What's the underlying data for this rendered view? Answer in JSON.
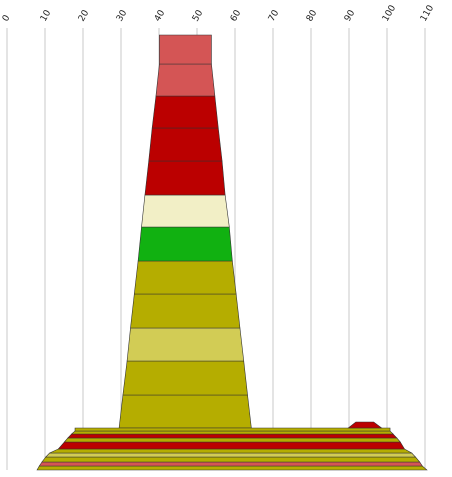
{
  "chart_data": {
    "type": "area",
    "title": "",
    "xlabel": "",
    "ylabel": "",
    "xlim": [
      0,
      110
    ],
    "x_ticks": [
      0,
      10,
      20,
      30,
      40,
      50,
      60,
      70,
      80,
      90,
      100,
      110
    ],
    "grid": true,
    "legend": "none",
    "stacks": [
      {
        "name": "",
        "layers": [
          {
            "left": 29.5,
            "right": 64.3,
            "color": "#b5ad00"
          },
          {
            "left": 30.5,
            "right": 63.3,
            "color": "#b5ad00"
          },
          {
            "left": 31.6,
            "right": 62.3,
            "color": "#d2cc55"
          },
          {
            "left": 32.5,
            "right": 61.3,
            "color": "#b5ad00"
          },
          {
            "left": 33.5,
            "right": 60.3,
            "color": "#b5ad00"
          },
          {
            "left": 34.5,
            "right": 59.3,
            "color": "#11b111"
          },
          {
            "left": 35.4,
            "right": 58.5,
            "color": "#f2efc6"
          },
          {
            "left": 36.3,
            "right": 57.4,
            "color": "#bb0000"
          },
          {
            "left": 37.3,
            "right": 56.6,
            "color": "#bb0000"
          },
          {
            "left": 38.2,
            "right": 55.6,
            "color": "#bb0000"
          },
          {
            "left": 39.2,
            "right": 54.7,
            "color": "#d45555"
          },
          {
            "left": 40.1,
            "right": 53.8,
            "color": "#d45555"
          }
        ]
      },
      {
        "name": "",
        "layers": [
          {
            "left": 7.9,
            "right": 110.5,
            "color": "#b5ad00"
          },
          {
            "left": 8.5,
            "right": 109.3,
            "color": "#d45555"
          },
          {
            "left": 9.2,
            "right": 108.6,
            "color": "#b5ad00"
          },
          {
            "left": 10.2,
            "right": 107.5,
            "color": "#d2cc55"
          },
          {
            "left": 11.2,
            "right": 106.5,
            "color": "#b5ad00"
          },
          {
            "left": 13.5,
            "right": 104.6,
            "color": "#bb0000"
          },
          {
            "left": 15.1,
            "right": 103.5,
            "color": "#b5ad00"
          },
          {
            "left": 16.0,
            "right": 102.6,
            "color": "#bb0000"
          },
          {
            "left": 17.0,
            "right": 101.6,
            "color": "#b5ad00"
          },
          {
            "left": 17.9,
            "right": 100.8,
            "color": "#b5ad00"
          }
        ]
      }
    ],
    "cap": {
      "points": [
        [
          89.8,
          0
        ],
        [
          91.8,
          1
        ],
        [
          96.5,
          1
        ],
        [
          98.6,
          0
        ]
      ],
      "color": "#bb0000"
    }
  }
}
